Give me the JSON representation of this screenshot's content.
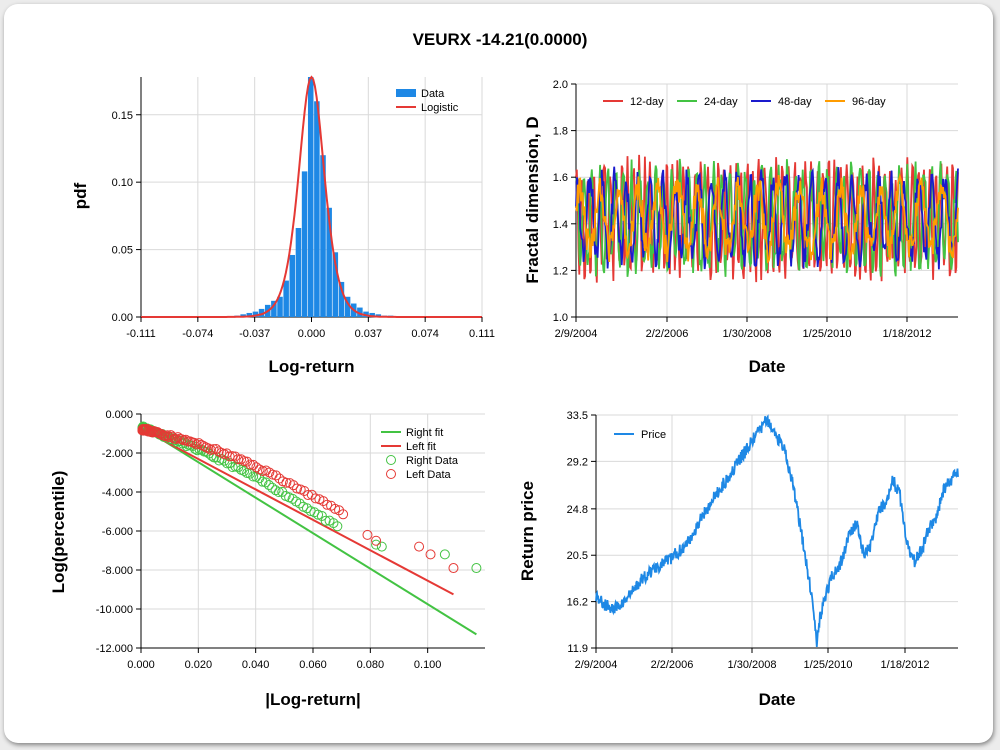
{
  "title": "VEURX -14.21(0.0000)",
  "chart_data": [
    {
      "type": "bar",
      "panel": "pdf",
      "xlabel": "Log-return",
      "ylabel": "pdf",
      "xlim": [
        -0.111,
        0.111
      ],
      "ylim": [
        0,
        0.178
      ],
      "xticks": [
        "-0.111",
        "-0.074",
        "-0.037",
        "0.000",
        "0.037",
        "0.074",
        "0.111"
      ],
      "yticks": [
        "0.00",
        "0.05",
        "0.10",
        "0.15"
      ],
      "legend": [
        "Data",
        "Logistic"
      ],
      "colors": {
        "data": "#1e88e5",
        "fit": "#e53935"
      },
      "bin_centers": [
        -0.0485,
        -0.0445,
        -0.0405,
        -0.0365,
        -0.0325,
        -0.0285,
        -0.0245,
        -0.0205,
        -0.0165,
        -0.0125,
        -0.0085,
        -0.0045,
        -0.0005,
        0.0035,
        0.0075,
        0.0115,
        0.0155,
        0.0195,
        0.0235,
        0.0275,
        0.0315,
        0.0355,
        0.0395,
        0.0435,
        0.0475,
        0.0515
      ],
      "values": [
        0.001,
        0.002,
        0.003,
        0.004,
        0.006,
        0.009,
        0.012,
        0.015,
        0.027,
        0.046,
        0.066,
        0.108,
        0.178,
        0.16,
        0.12,
        0.081,
        0.048,
        0.026,
        0.015,
        0.01,
        0.007,
        0.004,
        0.003,
        0.002,
        0.001,
        0.001
      ],
      "fit": {
        "name": "Logistic",
        "mu": 0.0,
        "s": 0.0056
      }
    },
    {
      "type": "line",
      "panel": "fractal",
      "xlabel": "Date",
      "ylabel": "Fractal dimension, D",
      "xticks": [
        "2/9/2004",
        "2/2/2006",
        "1/30/2008",
        "1/25/2010",
        "1/18/2012"
      ],
      "ylim": [
        1.0,
        2.0
      ],
      "yticks": [
        "1.0",
        "1.2",
        "1.4",
        "1.6",
        "1.8",
        "2.0"
      ],
      "series": [
        {
          "name": "12-day",
          "color": "#e53935"
        },
        {
          "name": "24-day",
          "color": "#43c343"
        },
        {
          "name": "48-day",
          "color": "#1a1acd"
        },
        {
          "name": "96-day",
          "color": "#ff9c00"
        }
      ]
    },
    {
      "type": "scatter",
      "panel": "tail",
      "xlabel": "|Log-return|",
      "ylabel": "Log(percentile)",
      "xlim": [
        0,
        0.12
      ],
      "ylim": [
        -12,
        0
      ],
      "xticks": [
        "0.000",
        "0.020",
        "0.040",
        "0.060",
        "0.080",
        "0.100"
      ],
      "yticks": [
        "0.000",
        "-2.000",
        "-4.000",
        "-6.000",
        "-8.000",
        "-10.000",
        "-12.000"
      ],
      "legend": [
        "Right fit",
        "Left fit",
        "Right Data",
        "Left Data"
      ],
      "colors": {
        "right": "#43c343",
        "left": "#e53935"
      },
      "right_fit": [
        [
          0.0,
          -0.65
        ],
        [
          0.117,
          -11.3
        ]
      ],
      "left_fit": [
        [
          0.0,
          -0.75
        ],
        [
          0.109,
          -9.25
        ]
      ],
      "right_outliers": [
        [
          0.082,
          -6.7
        ],
        [
          0.084,
          -6.8
        ],
        [
          0.106,
          -7.2
        ],
        [
          0.117,
          -7.9
        ]
      ],
      "left_outliers": [
        [
          0.079,
          -6.2
        ],
        [
          0.082,
          -6.5
        ],
        [
          0.097,
          -6.8
        ],
        [
          0.101,
          -7.2
        ],
        [
          0.109,
          -7.9
        ]
      ]
    },
    {
      "type": "line",
      "panel": "price",
      "xlabel": "Date",
      "ylabel": "Return price",
      "xticks": [
        "2/9/2004",
        "2/2/2006",
        "1/30/2008",
        "1/25/2010",
        "1/18/2012"
      ],
      "ylim": [
        11.9,
        33.5
      ],
      "yticks": [
        "11.9",
        "16.2",
        "20.5",
        "24.8",
        "29.2",
        "33.5"
      ],
      "legend": [
        "Price"
      ],
      "color": "#1e88e5",
      "x": [
        0.0,
        0.02,
        0.05,
        0.08,
        0.12,
        0.16,
        0.2,
        0.25,
        0.3,
        0.35,
        0.4,
        0.44,
        0.47,
        0.5,
        0.52,
        0.55,
        0.58,
        0.6,
        0.61,
        0.62,
        0.65,
        0.68,
        0.7,
        0.72,
        0.74,
        0.76,
        0.78,
        0.8,
        0.82,
        0.84,
        0.86,
        0.88,
        0.9,
        0.92,
        0.94,
        0.96,
        0.98,
        1.0
      ],
      "y": [
        16.8,
        16.0,
        15.5,
        16.2,
        18.0,
        19.3,
        20.0,
        21.5,
        24.5,
        27.0,
        29.5,
        31.5,
        33.0,
        31.5,
        30.5,
        26.0,
        20.0,
        15.8,
        12.3,
        15.0,
        18.5,
        20.0,
        22.5,
        23.5,
        20.5,
        21.5,
        24.5,
        25.5,
        27.5,
        26.0,
        21.5,
        20.0,
        21.0,
        23.0,
        24.0,
        26.5,
        27.5,
        28.3
      ]
    }
  ]
}
